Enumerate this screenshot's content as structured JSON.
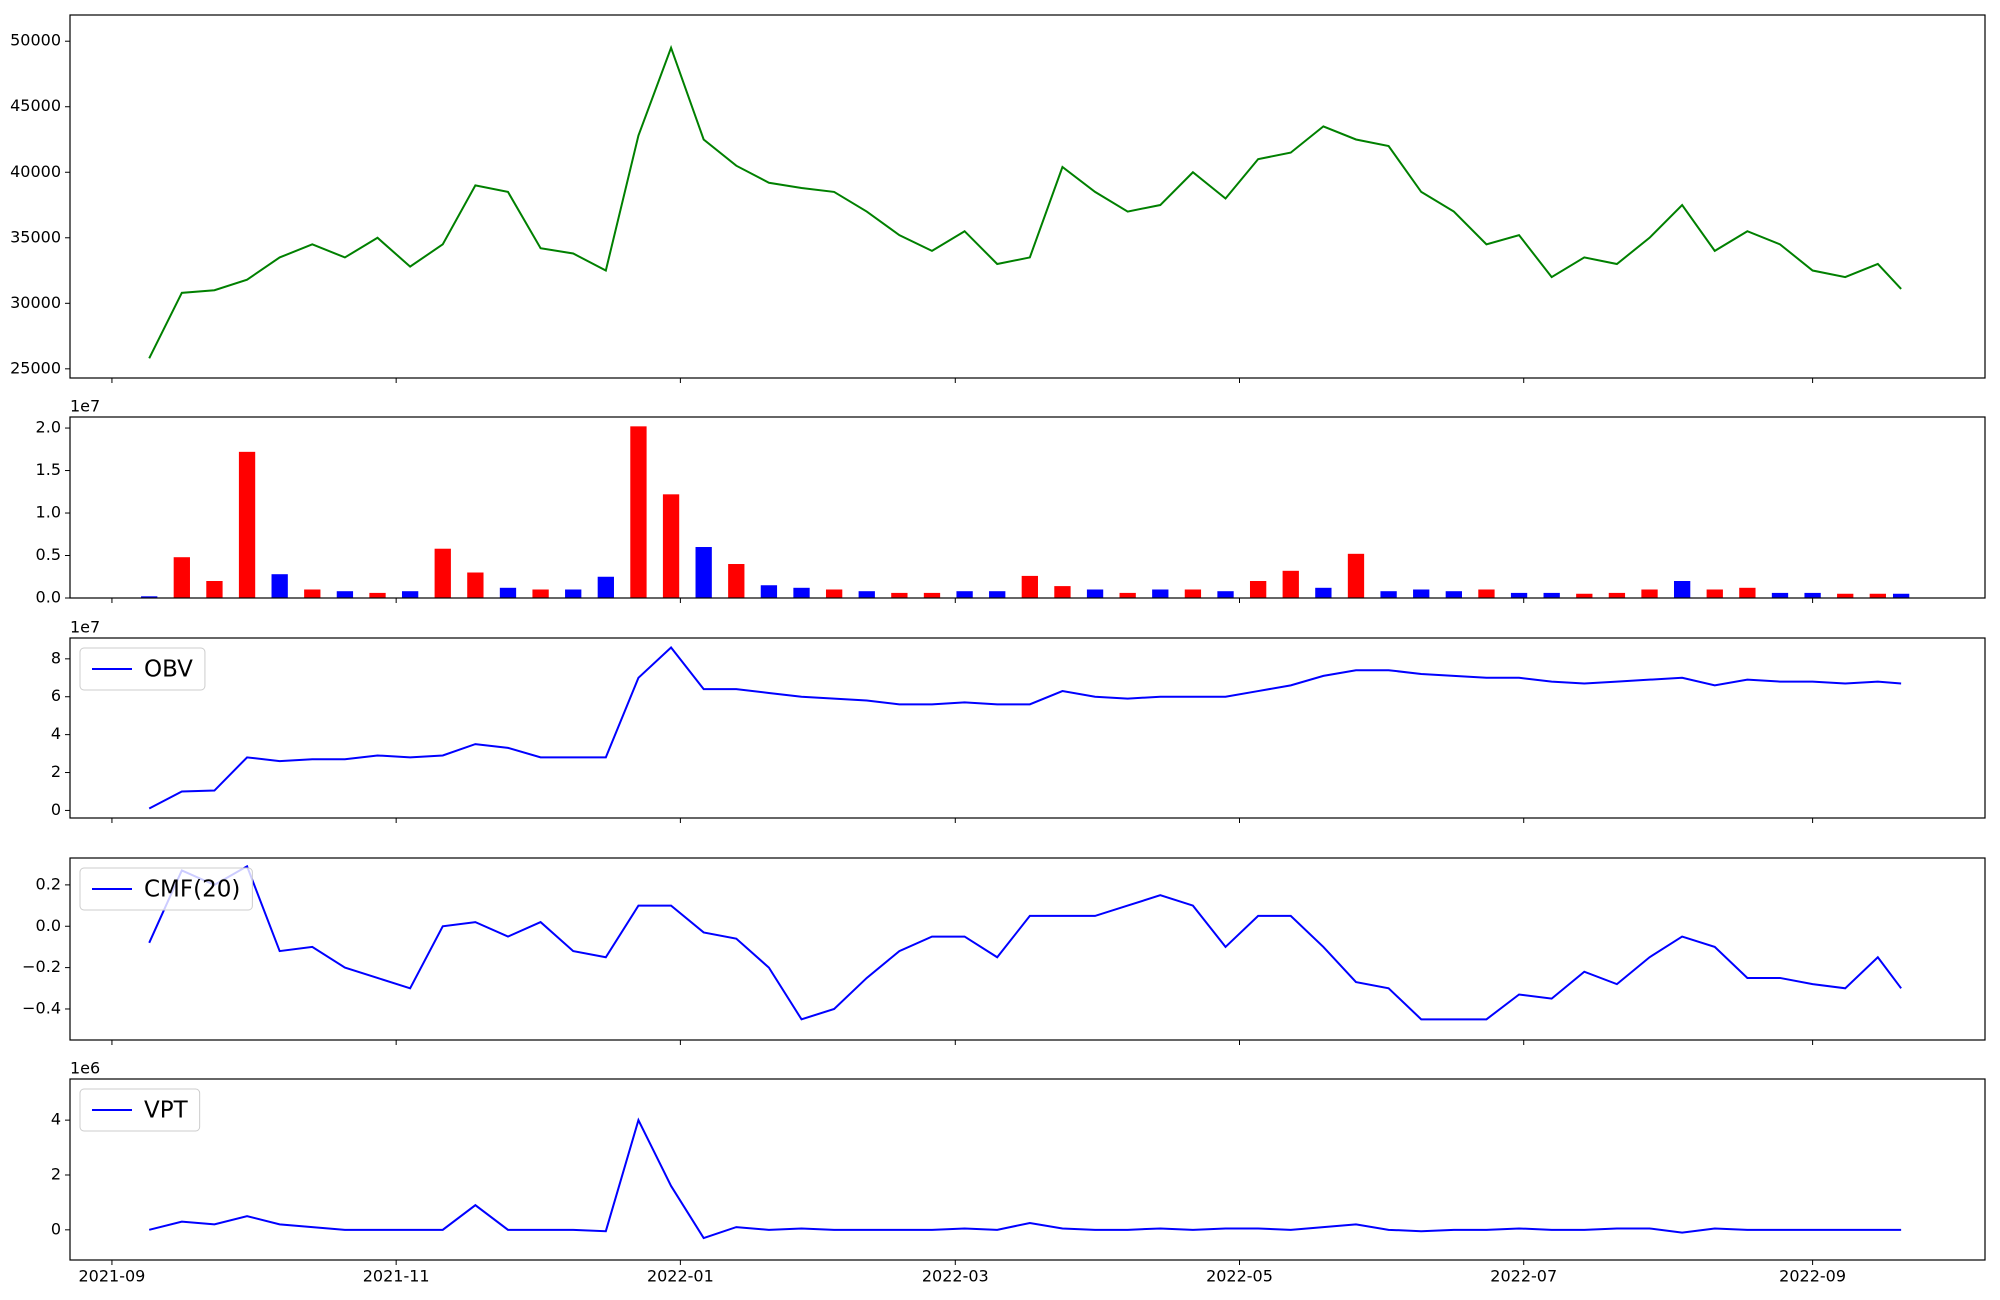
{
  "chart_data": [
    {
      "type": "line",
      "x": [
        "2021-09-09",
        "2021-09-16",
        "2021-09-23",
        "2021-09-30",
        "2021-10-07",
        "2021-10-14",
        "2021-10-21",
        "2021-10-28",
        "2021-11-04",
        "2021-11-11",
        "2021-11-18",
        "2021-11-25",
        "2021-12-02",
        "2021-12-09",
        "2021-12-16",
        "2021-12-23",
        "2021-12-30",
        "2022-01-06",
        "2022-01-13",
        "2022-01-20",
        "2022-01-27",
        "2022-02-03",
        "2022-02-10",
        "2022-02-17",
        "2022-02-24",
        "2022-03-03",
        "2022-03-10",
        "2022-03-17",
        "2022-03-24",
        "2022-03-31",
        "2022-04-07",
        "2022-04-14",
        "2022-04-21",
        "2022-04-28",
        "2022-05-05",
        "2022-05-12",
        "2022-05-19",
        "2022-05-26",
        "2022-06-02",
        "2022-06-09",
        "2022-06-16",
        "2022-06-23",
        "2022-06-30",
        "2022-07-07",
        "2022-07-14",
        "2022-07-21",
        "2022-07-28",
        "2022-08-04",
        "2022-08-11",
        "2022-08-18",
        "2022-08-25",
        "2022-09-01",
        "2022-09-08",
        "2022-09-15",
        "2022-09-20"
      ],
      "series": [
        {
          "color": "#008000",
          "values": [
            25800,
            30800,
            31000,
            31800,
            33500,
            34500,
            33500,
            35000,
            32800,
            34500,
            39000,
            38500,
            34200,
            33800,
            32500,
            42800,
            49500,
            42500,
            40500,
            39200,
            38800,
            38500,
            37000,
            35200,
            34000,
            35500,
            33000,
            33500,
            40400,
            38500,
            37000,
            37500,
            40000,
            38000,
            41000,
            41500,
            43500,
            42500,
            42000,
            38500,
            37000,
            34500,
            35200,
            32000,
            33500,
            33000,
            35000,
            37500,
            34000,
            35500,
            34500,
            32500,
            32000,
            33000,
            31100
          ]
        }
      ],
      "xlim": [
        "2021-08-23",
        "2022-10-08"
      ],
      "xticks": [
        "2021-09",
        "2021-11",
        "2022-01",
        "2022-03",
        "2022-05",
        "2022-07",
        "2022-09"
      ],
      "ylim": [
        24300,
        52000
      ],
      "yticks": [
        25000,
        30000,
        35000,
        40000,
        45000,
        50000
      ]
    },
    {
      "type": "bar",
      "offset_text": "1e7",
      "x": [
        "2021-09-09",
        "2021-09-16",
        "2021-09-23",
        "2021-09-30",
        "2021-10-07",
        "2021-10-14",
        "2021-10-21",
        "2021-10-28",
        "2021-11-04",
        "2021-11-11",
        "2021-11-18",
        "2021-11-25",
        "2021-12-02",
        "2021-12-09",
        "2021-12-16",
        "2021-12-23",
        "2021-12-30",
        "2022-01-06",
        "2022-01-13",
        "2022-01-20",
        "2022-01-27",
        "2022-02-03",
        "2022-02-10",
        "2022-02-17",
        "2022-02-24",
        "2022-03-03",
        "2022-03-10",
        "2022-03-17",
        "2022-03-24",
        "2022-03-31",
        "2022-04-07",
        "2022-04-14",
        "2022-04-21",
        "2022-04-28",
        "2022-05-05",
        "2022-05-12",
        "2022-05-19",
        "2022-05-26",
        "2022-06-02",
        "2022-06-09",
        "2022-06-16",
        "2022-06-23",
        "2022-06-30",
        "2022-07-07",
        "2022-07-14",
        "2022-07-21",
        "2022-07-28",
        "2022-08-04",
        "2022-08-11",
        "2022-08-18",
        "2022-08-25",
        "2022-09-01",
        "2022-09-08",
        "2022-09-15",
        "2022-09-20"
      ],
      "values": [
        0.02,
        0.48,
        0.2,
        1.72,
        0.28,
        0.1,
        0.08,
        0.06,
        0.08,
        0.58,
        0.3,
        0.12,
        0.1,
        0.1,
        0.25,
        2.02,
        1.22,
        0.6,
        0.4,
        0.15,
        0.12,
        0.1,
        0.08,
        0.06,
        0.06,
        0.08,
        0.08,
        0.26,
        0.14,
        0.1,
        0.06,
        0.1,
        0.1,
        0.08,
        0.2,
        0.32,
        0.12,
        0.52,
        0.08,
        0.1,
        0.08,
        0.1,
        0.06,
        0.06,
        0.05,
        0.06,
        0.1,
        0.2,
        0.1,
        0.12,
        0.06,
        0.06,
        0.05,
        0.05,
        0.05
      ],
      "colors": [
        "#0000ff",
        "#ff0000",
        "#ff0000",
        "#ff0000",
        "#0000ff",
        "#ff0000",
        "#0000ff",
        "#ff0000",
        "#0000ff",
        "#ff0000",
        "#ff0000",
        "#0000ff",
        "#ff0000",
        "#0000ff",
        "#0000ff",
        "#ff0000",
        "#ff0000",
        "#0000ff",
        "#ff0000",
        "#0000ff",
        "#0000ff",
        "#ff0000",
        "#0000ff",
        "#ff0000",
        "#ff0000",
        "#0000ff",
        "#0000ff",
        "#ff0000",
        "#ff0000",
        "#0000ff",
        "#ff0000",
        "#0000ff",
        "#ff0000",
        "#0000ff",
        "#ff0000",
        "#ff0000",
        "#0000ff",
        "#ff0000",
        "#0000ff",
        "#0000ff",
        "#0000ff",
        "#ff0000",
        "#0000ff",
        "#0000ff",
        "#ff0000",
        "#ff0000",
        "#ff0000",
        "#0000ff",
        "#ff0000",
        "#ff0000",
        "#0000ff",
        "#0000ff",
        "#ff0000",
        "#ff0000",
        "#0000ff"
      ],
      "xlim": [
        "2021-08-23",
        "2022-10-08"
      ],
      "xticks": [
        "2021-09",
        "2021-11",
        "2022-01",
        "2022-03",
        "2022-05",
        "2022-07",
        "2022-09"
      ],
      "ylim": [
        0,
        2.13
      ],
      "yticks": [
        {
          "value": 0,
          "label": "0.0"
        },
        0.5,
        {
          "value": 1,
          "label": "1.0"
        },
        1.5,
        {
          "value": 2,
          "label": "2.0"
        }
      ]
    },
    {
      "type": "line",
      "offset_text": "1e7",
      "legend": "upper left",
      "x": [
        "2021-09-09",
        "2021-09-16",
        "2021-09-23",
        "2021-09-30",
        "2021-10-07",
        "2021-10-14",
        "2021-10-21",
        "2021-10-28",
        "2021-11-04",
        "2021-11-11",
        "2021-11-18",
        "2021-11-25",
        "2021-12-02",
        "2021-12-09",
        "2021-12-16",
        "2021-12-23",
        "2021-12-30",
        "2022-01-06",
        "2022-01-13",
        "2022-01-20",
        "2022-01-27",
        "2022-02-03",
        "2022-02-10",
        "2022-02-17",
        "2022-02-24",
        "2022-03-03",
        "2022-03-10",
        "2022-03-17",
        "2022-03-24",
        "2022-03-31",
        "2022-04-07",
        "2022-04-14",
        "2022-04-21",
        "2022-04-28",
        "2022-05-05",
        "2022-05-12",
        "2022-05-19",
        "2022-05-26",
        "2022-06-02",
        "2022-06-09",
        "2022-06-16",
        "2022-06-23",
        "2022-06-30",
        "2022-07-07",
        "2022-07-14",
        "2022-07-21",
        "2022-07-28",
        "2022-08-04",
        "2022-08-11",
        "2022-08-18",
        "2022-08-25",
        "2022-09-01",
        "2022-09-08",
        "2022-09-15",
        "2022-09-20"
      ],
      "series": [
        {
          "name": "OBV",
          "color": "#0000ff",
          "values": [
            0.1,
            1.0,
            1.05,
            2.8,
            2.6,
            2.7,
            2.7,
            2.9,
            2.8,
            2.9,
            3.5,
            3.3,
            2.8,
            2.8,
            2.8,
            7.0,
            8.6,
            6.4,
            6.4,
            6.2,
            6.0,
            5.9,
            5.8,
            5.6,
            5.6,
            5.7,
            5.6,
            5.6,
            6.3,
            6.0,
            5.9,
            6.0,
            6.0,
            6.0,
            6.3,
            6.6,
            7.1,
            7.4,
            7.4,
            7.2,
            7.1,
            7.0,
            7.0,
            6.8,
            6.7,
            6.8,
            6.9,
            7.0,
            6.6,
            6.9,
            6.8,
            6.8,
            6.7,
            6.8,
            6.7
          ]
        }
      ],
      "xlim": [
        "2021-08-23",
        "2022-10-08"
      ],
      "xticks": [
        "2021-09",
        "2021-11",
        "2022-01",
        "2022-03",
        "2022-05",
        "2022-07",
        "2022-09"
      ],
      "ylim": [
        -0.4,
        9.1
      ],
      "yticks": [
        0,
        2,
        4,
        6,
        8
      ]
    },
    {
      "type": "line",
      "legend": "upper left",
      "x": [
        "2021-09-09",
        "2021-09-16",
        "2021-09-23",
        "2021-09-30",
        "2021-10-07",
        "2021-10-14",
        "2021-10-21",
        "2021-10-28",
        "2021-11-04",
        "2021-11-11",
        "2021-11-18",
        "2021-11-25",
        "2021-12-02",
        "2021-12-09",
        "2021-12-16",
        "2021-12-23",
        "2021-12-30",
        "2022-01-06",
        "2022-01-13",
        "2022-01-20",
        "2022-01-27",
        "2022-02-03",
        "2022-02-10",
        "2022-02-17",
        "2022-02-24",
        "2022-03-03",
        "2022-03-10",
        "2022-03-17",
        "2022-03-24",
        "2022-03-31",
        "2022-04-07",
        "2022-04-14",
        "2022-04-21",
        "2022-04-28",
        "2022-05-05",
        "2022-05-12",
        "2022-05-19",
        "2022-05-26",
        "2022-06-02",
        "2022-06-09",
        "2022-06-16",
        "2022-06-23",
        "2022-06-30",
        "2022-07-07",
        "2022-07-14",
        "2022-07-21",
        "2022-07-28",
        "2022-08-04",
        "2022-08-11",
        "2022-08-18",
        "2022-08-25",
        "2022-09-01",
        "2022-09-08",
        "2022-09-15",
        "2022-09-20"
      ],
      "series": [
        {
          "name": "CMF(20)",
          "color": "#0000ff",
          "values": [
            -0.08,
            0.27,
            0.2,
            0.29,
            -0.12,
            -0.1,
            -0.2,
            -0.25,
            -0.3,
            0.0,
            0.02,
            -0.05,
            0.02,
            -0.12,
            -0.15,
            0.1,
            0.1,
            -0.03,
            -0.06,
            -0.2,
            -0.45,
            -0.4,
            -0.25,
            -0.12,
            -0.05,
            -0.05,
            -0.15,
            0.05,
            0.05,
            0.05,
            0.1,
            0.15,
            0.1,
            -0.1,
            0.05,
            0.05,
            -0.1,
            -0.27,
            -0.3,
            -0.45,
            -0.45,
            -0.45,
            -0.33,
            -0.35,
            -0.22,
            -0.28,
            -0.15,
            -0.05,
            -0.1,
            -0.25,
            -0.25,
            -0.28,
            -0.3,
            -0.15,
            -0.3
          ]
        }
      ],
      "xlim": [
        "2021-08-23",
        "2022-10-08"
      ],
      "xticks": [
        "2021-09",
        "2021-11",
        "2022-01",
        "2022-03",
        "2022-05",
        "2022-07",
        "2022-09"
      ],
      "ylim": [
        -0.55,
        0.33
      ],
      "yticks": [
        {
          "value": -0.4,
          "label": "−0.4"
        },
        {
          "value": -0.2,
          "label": "−0.2"
        },
        {
          "value": 0,
          "label": "0.0"
        },
        0.2
      ]
    },
    {
      "type": "line",
      "offset_text": "1e6",
      "legend": "upper left",
      "x": [
        "2021-09-09",
        "2021-09-16",
        "2021-09-23",
        "2021-09-30",
        "2021-10-07",
        "2021-10-14",
        "2021-10-21",
        "2021-10-28",
        "2021-11-04",
        "2021-11-11",
        "2021-11-18",
        "2021-11-25",
        "2021-12-02",
        "2021-12-09",
        "2021-12-16",
        "2021-12-23",
        "2021-12-30",
        "2022-01-06",
        "2022-01-13",
        "2022-01-20",
        "2022-01-27",
        "2022-02-03",
        "2022-02-10",
        "2022-02-17",
        "2022-02-24",
        "2022-03-03",
        "2022-03-10",
        "2022-03-17",
        "2022-03-24",
        "2022-03-31",
        "2022-04-07",
        "2022-04-14",
        "2022-04-21",
        "2022-04-28",
        "2022-05-05",
        "2022-05-12",
        "2022-05-19",
        "2022-05-26",
        "2022-06-02",
        "2022-06-09",
        "2022-06-16",
        "2022-06-23",
        "2022-06-30",
        "2022-07-07",
        "2022-07-14",
        "2022-07-21",
        "2022-07-28",
        "2022-08-04",
        "2022-08-11",
        "2022-08-18",
        "2022-08-25",
        "2022-09-01",
        "2022-09-08",
        "2022-09-15",
        "2022-09-20"
      ],
      "series": [
        {
          "name": "VPT",
          "color": "#0000ff",
          "values": [
            0,
            0.3,
            0.2,
            0.5,
            0.2,
            0.1,
            0.0,
            0.0,
            0.0,
            0.0,
            0.9,
            0.0,
            0.0,
            0.0,
            -0.05,
            4.0,
            1.6,
            -0.3,
            0.1,
            0.0,
            0.05,
            0.0,
            0.0,
            0.0,
            0.0,
            0.05,
            0.0,
            0.25,
            0.05,
            0.0,
            0.0,
            0.05,
            0.0,
            0.05,
            0.05,
            0.0,
            0.1,
            0.2,
            0.0,
            -0.05,
            0.0,
            0.0,
            0.05,
            0.0,
            0.0,
            0.05,
            0.05,
            -0.1,
            0.05,
            0.0,
            0.0,
            0.0,
            0.0,
            0.0,
            0.0
          ]
        }
      ],
      "xlim": [
        "2021-08-23",
        "2022-10-08"
      ],
      "xticks": [
        "2021-09",
        "2021-11",
        "2022-01",
        "2022-03",
        "2022-05",
        "2022-07",
        "2022-09"
      ],
      "ylim": [
        -1.1,
        5.5
      ],
      "yticks": [
        0,
        2,
        4
      ]
    }
  ]
}
